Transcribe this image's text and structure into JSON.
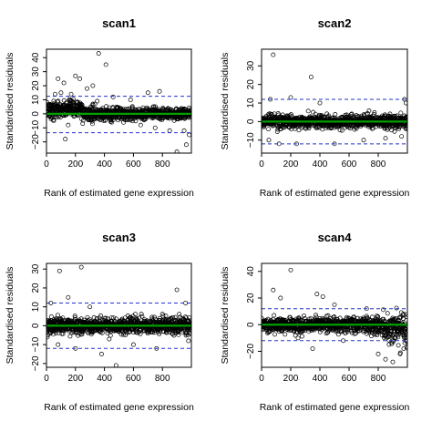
{
  "chart_data": [
    {
      "type": "scatter",
      "title": "scan1",
      "xlabel": "Rank of estimated gene expression",
      "ylabel": "Standardised residuals",
      "xlim": [
        0,
        1000
      ],
      "ylim": [
        -28,
        46
      ],
      "xticks": [
        "0",
        "200",
        "400",
        "600",
        "800"
      ],
      "yticks": [
        "−20",
        "−10",
        "0",
        "10",
        "20",
        "30",
        "40"
      ],
      "threshold_lines": [
        12.5,
        -13.5
      ],
      "fit_line": 0,
      "approx_points": [
        [
          60,
          14
        ],
        [
          80,
          25
        ],
        [
          100,
          15
        ],
        [
          120,
          22
        ],
        [
          130,
          -18
        ],
        [
          170,
          14
        ],
        [
          200,
          27
        ],
        [
          230,
          25
        ],
        [
          280,
          18
        ],
        [
          320,
          20
        ],
        [
          350,
          9
        ],
        [
          360,
          43
        ],
        [
          410,
          35
        ],
        [
          460,
          12
        ],
        [
          580,
          10
        ],
        [
          700,
          15
        ],
        [
          780,
          16
        ],
        [
          900,
          -27
        ],
        [
          965,
          -22
        ],
        [
          985,
          -15
        ],
        [
          50,
          -5
        ],
        [
          150,
          -8
        ],
        [
          250,
          -7
        ],
        [
          450,
          -6
        ],
        [
          650,
          -8
        ],
        [
          750,
          -10
        ],
        [
          850,
          -12
        ],
        [
          950,
          -12
        ]
      ]
    },
    {
      "type": "scatter",
      "title": "scan2",
      "xlabel": "Rank of estimated gene expression",
      "ylabel": "Standardised residuals",
      "xlim": [
        0,
        1000
      ],
      "ylim": [
        -17,
        39
      ],
      "xticks": [
        "0",
        "200",
        "400",
        "600",
        "800"
      ],
      "yticks": [
        "−10",
        "0",
        "10",
        "20",
        "30"
      ],
      "threshold_lines": [
        12,
        -12
      ],
      "fit_line": 0,
      "approx_points": [
        [
          80,
          36
        ],
        [
          340,
          24
        ],
        [
          60,
          12
        ],
        [
          200,
          13
        ],
        [
          400,
          10
        ],
        [
          980,
          12
        ],
        [
          990,
          10
        ],
        [
          50,
          -10
        ],
        [
          120,
          -12
        ],
        [
          240,
          -12
        ],
        [
          500,
          -12
        ],
        [
          700,
          -10
        ],
        [
          850,
          -9
        ],
        [
          960,
          -8
        ]
      ]
    },
    {
      "type": "scatter",
      "title": "scan3",
      "xlabel": "Rank of estimated gene expression",
      "ylabel": "Standardised residuals",
      "xlim": [
        0,
        1000
      ],
      "ylim": [
        -22,
        33
      ],
      "xticks": [
        "0",
        "200",
        "400",
        "600",
        "800"
      ],
      "yticks": [
        "−20",
        "−10",
        "0",
        "10",
        "20",
        "30"
      ],
      "threshold_lines": [
        12,
        -12
      ],
      "fit_line": 0,
      "approx_points": [
        [
          90,
          29
        ],
        [
          240,
          31
        ],
        [
          30,
          12
        ],
        [
          150,
          15
        ],
        [
          300,
          10
        ],
        [
          900,
          19
        ],
        [
          960,
          12
        ],
        [
          80,
          -10
        ],
        [
          200,
          -12
        ],
        [
          380,
          -15
        ],
        [
          480,
          -21
        ],
        [
          600,
          -10
        ],
        [
          760,
          -12
        ],
        [
          980,
          -8
        ]
      ]
    },
    {
      "type": "scatter",
      "title": "scan4",
      "xlabel": "Rank of estimated gene expression",
      "ylabel": "Standardised residuals",
      "xlim": [
        0,
        1000
      ],
      "ylim": [
        -32,
        46
      ],
      "xticks": [
        "0",
        "200",
        "400",
        "600",
        "800"
      ],
      "yticks": [
        "−20",
        "0",
        "20",
        "40"
      ],
      "threshold_lines": [
        12,
        -12
      ],
      "fit_line": 0,
      "approx_points": [
        [
          200,
          41
        ],
        [
          80,
          26
        ],
        [
          130,
          20
        ],
        [
          380,
          23
        ],
        [
          420,
          21
        ],
        [
          500,
          15
        ],
        [
          720,
          12
        ],
        [
          250,
          -10
        ],
        [
          350,
          -18
        ],
        [
          560,
          -12
        ],
        [
          800,
          -22
        ],
        [
          850,
          -26
        ],
        [
          900,
          -28
        ],
        [
          950,
          -22
        ],
        [
          975,
          -18
        ]
      ]
    }
  ]
}
